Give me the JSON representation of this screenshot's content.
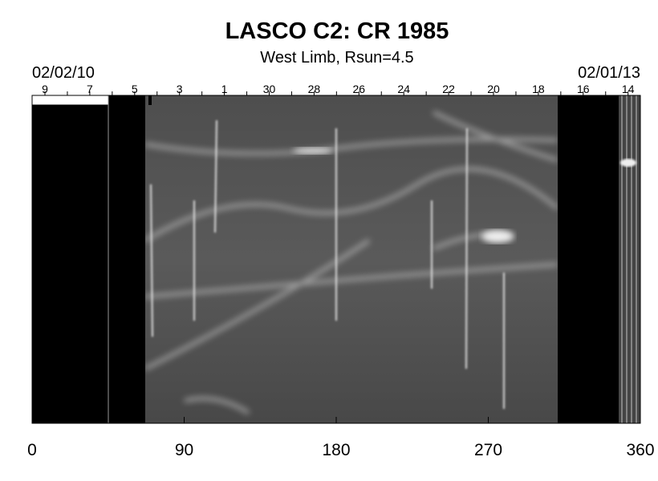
{
  "chart_data": {
    "type": "synoptic-map",
    "title": "LASCO C2: CR 1985",
    "subtitle": "West Limb, Rsun=4.5",
    "start_date": "02/02/10",
    "end_date": "02/01/13",
    "day_labels": [
      "9",
      "7",
      "5",
      "3",
      "1",
      "30",
      "28",
      "26",
      "24",
      "22",
      "20",
      "18",
      "16",
      "14"
    ],
    "xlim": [
      0,
      360
    ],
    "xticks": [
      0,
      90,
      180,
      270,
      360
    ]
  }
}
